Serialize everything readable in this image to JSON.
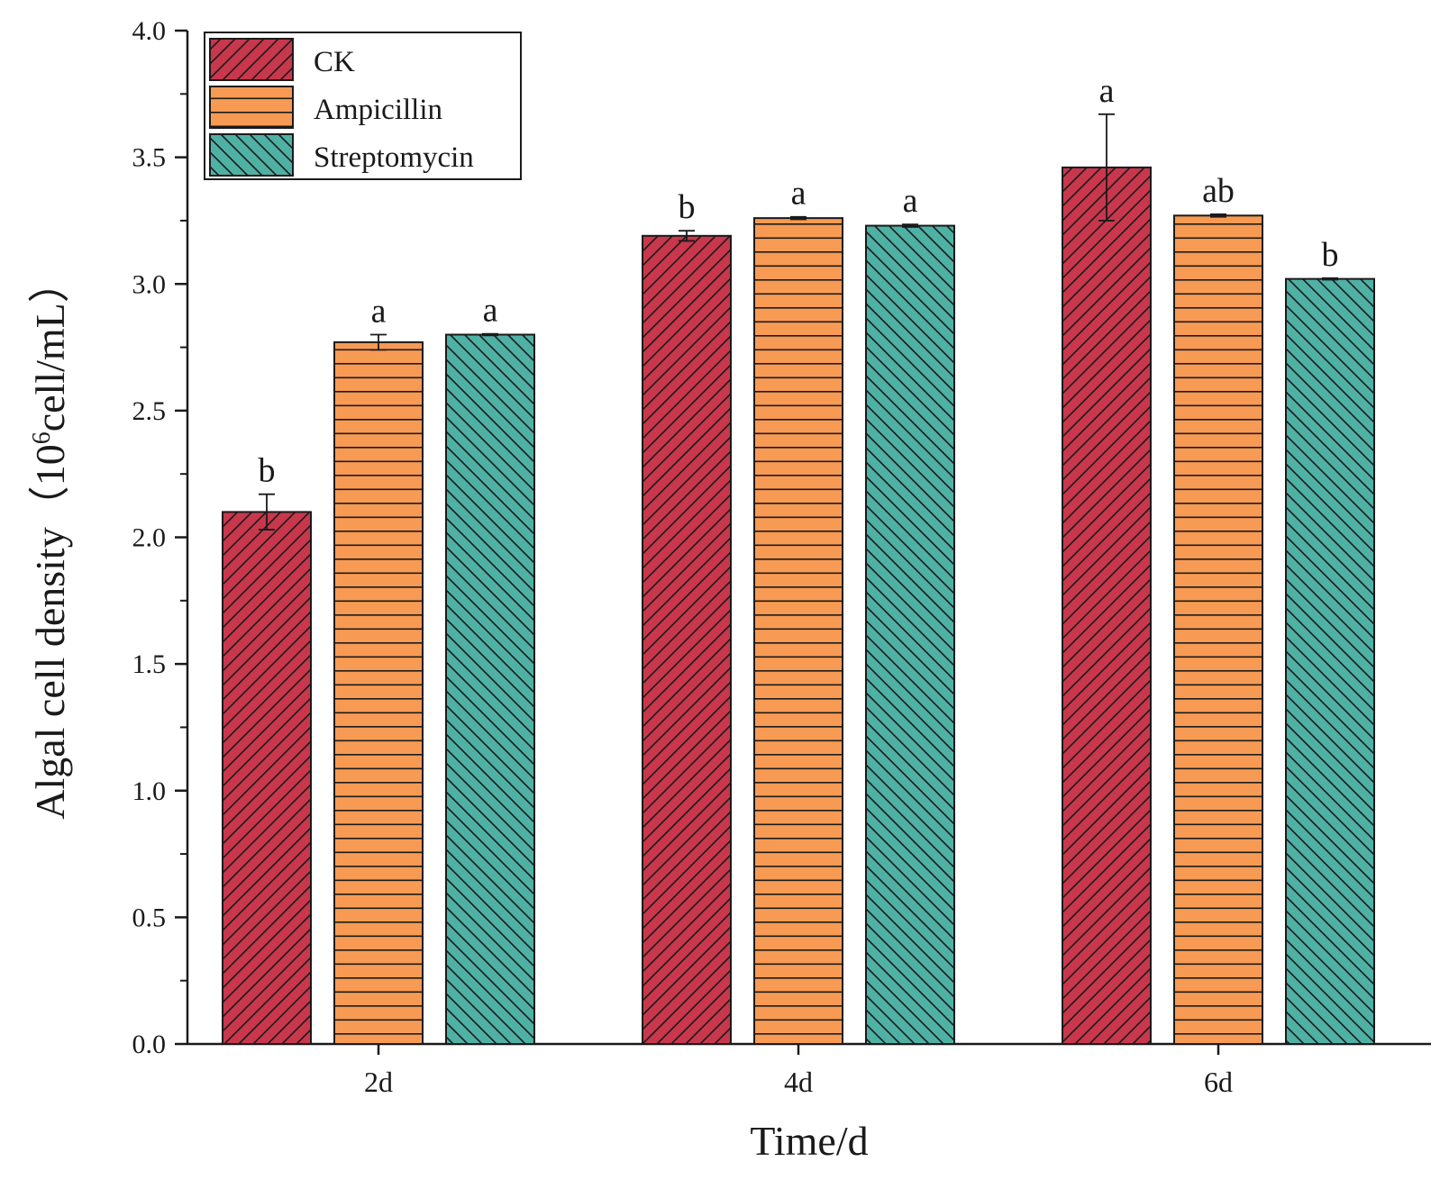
{
  "chart_data": {
    "type": "bar",
    "title": "",
    "xlabel": "Time/d",
    "ylabel": "Algal cell density（10",
    "ylabel_sup": "6",
    "ylabel_tail": "cell/mL）",
    "ylim": [
      0,
      4.0
    ],
    "yticks": [
      "0.0",
      "0.5",
      "1.0",
      "1.5",
      "2.0",
      "2.5",
      "3.0",
      "3.5",
      "4.0"
    ],
    "categories": [
      "2d",
      "4d",
      "6d"
    ],
    "legend_position": "top-left",
    "series": [
      {
        "name": "CK",
        "color": "#c8374c",
        "pattern": "forward-diagonal",
        "values": [
          2.1,
          3.19,
          3.46
        ],
        "errors": [
          0.07,
          0.02,
          0.21
        ],
        "labels": [
          "b",
          "b",
          "a"
        ]
      },
      {
        "name": "Ampicillin",
        "color": "#f79a53",
        "pattern": "horizontal",
        "values": [
          2.77,
          3.26,
          3.27
        ],
        "errors": [
          0.03,
          0.005,
          0.005
        ],
        "labels": [
          "a",
          "a",
          "ab"
        ]
      },
      {
        "name": "Streptomycin",
        "color": "#4fb0a4",
        "pattern": "backward-diagonal",
        "values": [
          2.8,
          3.23,
          3.02
        ],
        "errors": [
          0.003,
          0.005,
          0.003
        ],
        "labels": [
          "a",
          "a",
          "b"
        ]
      }
    ]
  }
}
